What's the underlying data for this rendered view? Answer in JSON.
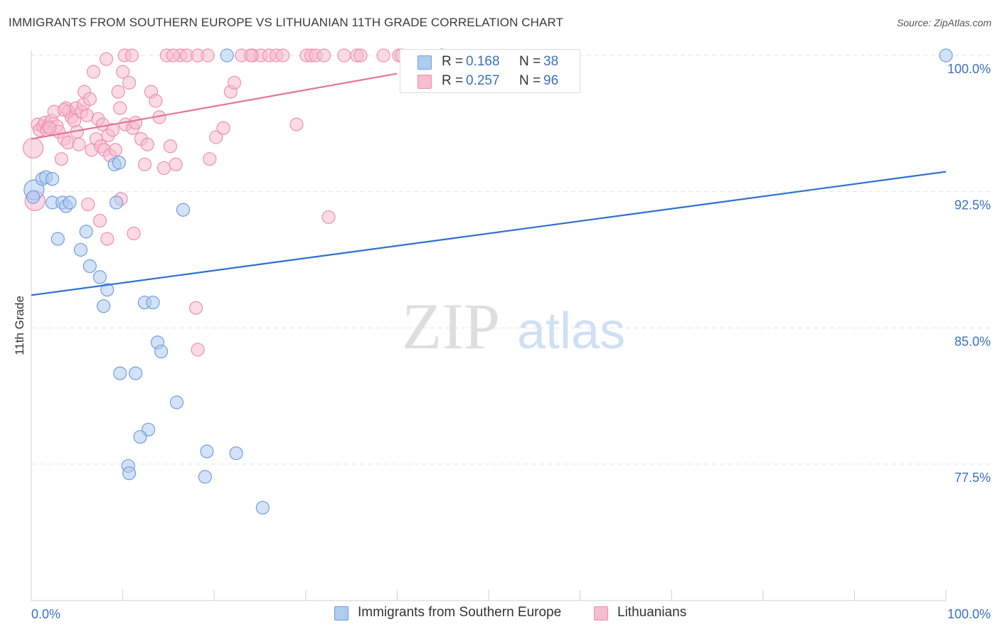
{
  "title": "IMMIGRANTS FROM SOUTHERN EUROPE VS LITHUANIAN 11TH GRADE CORRELATION CHART",
  "source": "Source: ZipAtlas.com",
  "watermark": {
    "zip": "ZIP",
    "atlas": "atlas"
  },
  "legend": {
    "r_label": "R =",
    "n_label": "N =",
    "series": [
      {
        "r": "0.168",
        "n": "38"
      },
      {
        "r": "0.257",
        "n": "96"
      }
    ]
  },
  "colors": {
    "blue_fill": "#aecbf0",
    "blue_stroke": "#6f9ee0",
    "blue_line": "#2e6fcf",
    "pink_fill": "#f6bcd0",
    "pink_stroke": "#ee8fb0",
    "pink_line": "#e8729a",
    "tick_label": "#3a6fc4",
    "grid": "#e3e3e3"
  },
  "chart_data": {
    "type": "scatter",
    "title": "IMMIGRANTS FROM SOUTHERN EUROPE VS LITHUANIAN 11TH GRADE CORRELATION CHART",
    "xlabel": "",
    "ylabel": "11th Grade",
    "xlim": [
      0,
      100
    ],
    "ylim": [
      70.0,
      101.0
    ],
    "x_tick_labels": [
      "0.0%",
      "100.0%"
    ],
    "y_ticks": [
      77.5,
      85.0,
      92.5,
      100.0
    ],
    "y_tick_labels": [
      "77.5%",
      "85.0%",
      "92.5%",
      "100.0%"
    ],
    "series": [
      {
        "name": "Immigrants from Southern Europe",
        "color": "blue",
        "trend": {
          "x": [
            0,
            100
          ],
          "y": [
            86.8,
            93.6
          ]
        },
        "points": [
          [
            0.3,
            92.6
          ],
          [
            1.2,
            93.2
          ],
          [
            1.6,
            93.3
          ],
          [
            2.3,
            93.2
          ],
          [
            2.3,
            91.9
          ],
          [
            3.4,
            91.9
          ],
          [
            3.8,
            91.7
          ],
          [
            4.2,
            91.9
          ],
          [
            2.9,
            89.9
          ],
          [
            6.0,
            90.3
          ],
          [
            5.4,
            89.3
          ],
          [
            6.4,
            88.4
          ],
          [
            7.5,
            87.8
          ],
          [
            8.3,
            87.1
          ],
          [
            7.9,
            86.2
          ],
          [
            9.1,
            94.0
          ],
          [
            9.3,
            91.9
          ],
          [
            9.6,
            94.1
          ],
          [
            12.4,
            86.4
          ],
          [
            13.3,
            86.4
          ],
          [
            13.8,
            84.2
          ],
          [
            14.2,
            83.7
          ],
          [
            9.7,
            82.5
          ],
          [
            11.4,
            82.5
          ],
          [
            15.9,
            80.9
          ],
          [
            12.8,
            79.4
          ],
          [
            11.9,
            79.0
          ],
          [
            10.6,
            77.4
          ],
          [
            10.7,
            77.0
          ],
          [
            19.2,
            78.2
          ],
          [
            22.4,
            78.1
          ],
          [
            19.0,
            76.8
          ],
          [
            25.3,
            75.1
          ],
          [
            16.6,
            91.5
          ],
          [
            21.4,
            100.0
          ],
          [
            44.9,
            100.0
          ],
          [
            100.0,
            100.0
          ],
          [
            0.2,
            92.2
          ]
        ]
      },
      {
        "name": "Lithuanians",
        "color": "pink",
        "trend": {
          "x": [
            0,
            40
          ],
          "y": [
            95.4,
            99.0
          ]
        },
        "points": [
          [
            0.2,
            94.9
          ],
          [
            0.4,
            92.0
          ],
          [
            0.7,
            96.2
          ],
          [
            0.9,
            95.9
          ],
          [
            1.3,
            96.1
          ],
          [
            1.5,
            96.3
          ],
          [
            1.7,
            95.9
          ],
          [
            1.9,
            96.1
          ],
          [
            2.2,
            96.4
          ],
          [
            2.5,
            96.9
          ],
          [
            2.8,
            96.1
          ],
          [
            3.0,
            95.8
          ],
          [
            3.3,
            94.3
          ],
          [
            3.6,
            95.4
          ],
          [
            3.8,
            97.1
          ],
          [
            4.0,
            95.2
          ],
          [
            4.1,
            96.9
          ],
          [
            4.4,
            96.6
          ],
          [
            4.7,
            96.4
          ],
          [
            4.9,
            97.1
          ],
          [
            5.0,
            95.8
          ],
          [
            5.2,
            95.1
          ],
          [
            5.5,
            96.9
          ],
          [
            5.7,
            97.3
          ],
          [
            5.8,
            98.0
          ],
          [
            6.1,
            96.7
          ],
          [
            6.4,
            97.6
          ],
          [
            6.6,
            94.8
          ],
          [
            6.8,
            99.1
          ],
          [
            7.1,
            95.4
          ],
          [
            7.3,
            96.5
          ],
          [
            7.6,
            95.0
          ],
          [
            7.8,
            96.2
          ],
          [
            8.0,
            94.8
          ],
          [
            8.2,
            99.8
          ],
          [
            8.4,
            95.6
          ],
          [
            8.6,
            94.5
          ],
          [
            8.9,
            95.9
          ],
          [
            9.2,
            94.8
          ],
          [
            9.5,
            98.0
          ],
          [
            9.7,
            97.1
          ],
          [
            10.0,
            99.1
          ],
          [
            10.3,
            96.2
          ],
          [
            10.7,
            98.5
          ],
          [
            11.1,
            96.0
          ],
          [
            11.4,
            96.3
          ],
          [
            12.0,
            95.4
          ],
          [
            12.4,
            94.0
          ],
          [
            12.7,
            95.1
          ],
          [
            13.1,
            98.0
          ],
          [
            13.6,
            97.5
          ],
          [
            14.0,
            96.6
          ],
          [
            14.5,
            93.8
          ],
          [
            15.2,
            95.0
          ],
          [
            15.8,
            94.0
          ],
          [
            16.3,
            100.0
          ],
          [
            17.0,
            100.0
          ],
          [
            18.2,
            100.0
          ],
          [
            19.5,
            94.3
          ],
          [
            20.2,
            95.5
          ],
          [
            21.0,
            96.0
          ],
          [
            21.8,
            98.0
          ],
          [
            22.2,
            98.5
          ],
          [
            23.0,
            100.0
          ],
          [
            24.2,
            100.0
          ],
          [
            25.1,
            100.0
          ],
          [
            26.0,
            100.0
          ],
          [
            26.8,
            100.0
          ],
          [
            27.5,
            100.0
          ],
          [
            29.0,
            96.2
          ],
          [
            30.1,
            100.0
          ],
          [
            30.6,
            100.0
          ],
          [
            31.1,
            100.0
          ],
          [
            32.5,
            91.1
          ],
          [
            34.2,
            100.0
          ],
          [
            35.6,
            100.0
          ],
          [
            36.0,
            100.0
          ],
          [
            38.5,
            100.0
          ],
          [
            40.2,
            100.0
          ],
          [
            3.6,
            97.0
          ],
          [
            6.2,
            91.8
          ],
          [
            7.5,
            90.9
          ],
          [
            8.3,
            89.9
          ],
          [
            9.8,
            92.1
          ],
          [
            11.2,
            90.2
          ],
          [
            18.0,
            86.1
          ],
          [
            18.2,
            83.8
          ],
          [
            2.0,
            96.0
          ],
          [
            10.2,
            100.0
          ],
          [
            11.0,
            100.0
          ],
          [
            14.8,
            100.0
          ],
          [
            15.5,
            100.0
          ],
          [
            19.3,
            100.0
          ],
          [
            24.0,
            100.0
          ],
          [
            32.0,
            100.0
          ],
          [
            40.5,
            100.0
          ]
        ]
      }
    ]
  }
}
